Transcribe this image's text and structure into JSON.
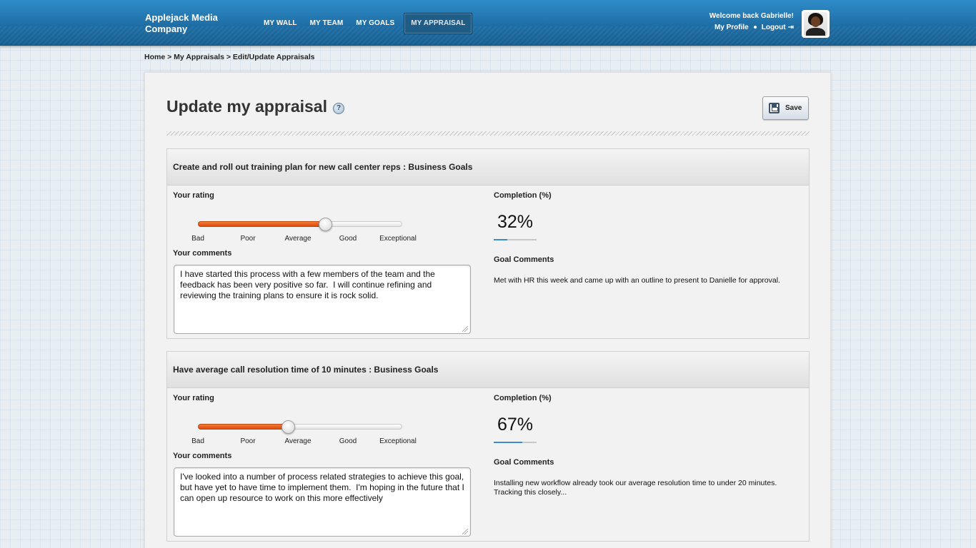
{
  "header": {
    "brand": "Applejack Media Company",
    "nav": [
      {
        "label": "MY WALL"
      },
      {
        "label": "MY TEAM"
      },
      {
        "label": "MY GOALS"
      },
      {
        "label": "MY APPRAISAL",
        "active": true
      }
    ],
    "welcome": "Welcome back Gabrielle!",
    "profile_link": "My Profile",
    "logout_link": "Logout"
  },
  "breadcrumb": "Home > My Appraisals > Edit/Update Appraisals",
  "page": {
    "title": "Update my appraisal",
    "help": "?",
    "save_label": "Save"
  },
  "labels": {
    "rating": "Your rating",
    "comments": "Your comments",
    "completion": "Completion (%)",
    "goal_comments": "Goal Comments"
  },
  "scale": [
    "Bad",
    "Poor",
    "Average",
    "Good",
    "Exceptional"
  ],
  "goals": [
    {
      "title": "Create and roll out training plan for new call center reps : Business Goals",
      "rating": "Good",
      "rating_index": 3,
      "completion_pct": 32,
      "completion_display": "32%",
      "comment": "I have started this process with a few members of the team and the feedback has been very positive so far.  I will continue refining and reviewing the training plans to ensure it is rock solid.",
      "goal_comment": "Met with HR this week and came up with an outline to present to Danielle for approval."
    },
    {
      "title": "Have average call resolution time of 10 minutes : Business Goals",
      "rating": "Average",
      "rating_index": 2,
      "completion_pct": 67,
      "completion_display": "67%",
      "comment": "I've looked into a number of process related strategies to achieve this goal, but have yet to have time to implement them.  I'm hoping in the future that I can open up resource to work on this more effectively",
      "goal_comment": "Installing new workflow already took our average resolution time to under 20 minutes. Tracking this closely..."
    }
  ]
}
